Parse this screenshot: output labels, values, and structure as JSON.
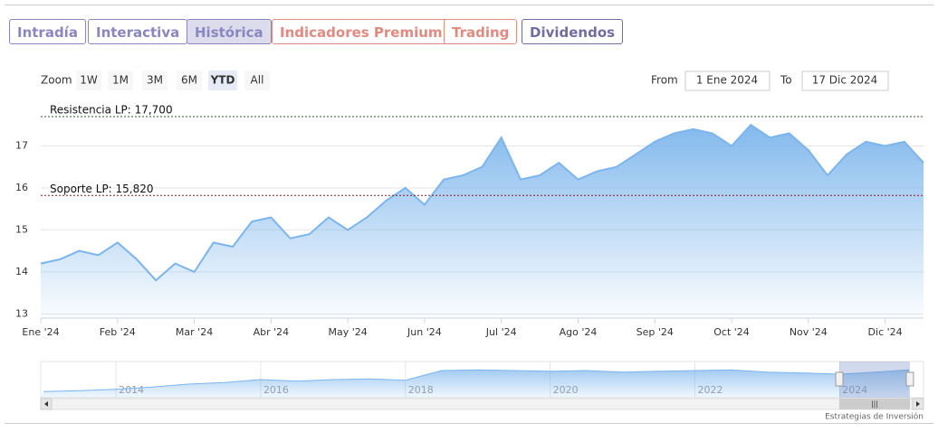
{
  "controls": {
    "tabs": [
      "Intradía",
      "Interactiva",
      "Histórica",
      "Indicadores Premium",
      "Trading",
      "Dividendos"
    ],
    "tab_colors": [
      "#8a86c0",
      "#8a86c0",
      "#8a86c0",
      "#e08a80",
      "#e08a80",
      "#6e6ea0"
    ],
    "active_tab": 2,
    "zoom_label": "Zoom",
    "zoom_buttons": [
      "1W",
      "1M",
      "3M",
      "6M",
      "YTD",
      "All"
    ],
    "active_zoom": 4,
    "from_label": "From",
    "from_value": "1 Ene 2024",
    "to_label": "To",
    "to_value": "17 Dic 2024",
    "credit": "Estrategias de Inversión"
  },
  "chart_data": [
    {
      "type": "area",
      "color": "#7cb5ec",
      "categories": [
        "Ene '24",
        null,
        null,
        null,
        "Feb '24",
        null,
        null,
        null,
        "Mar '24",
        null,
        null,
        null,
        "Abr '24",
        null,
        null,
        null,
        "May '24",
        null,
        null,
        null,
        "Jun '24",
        null,
        null,
        null,
        "Jul '24",
        null,
        null,
        null,
        "Ago '24",
        null,
        null,
        null,
        "Sep '24",
        null,
        null,
        null,
        "Oct '24",
        null,
        null,
        null,
        "Nov '24",
        null,
        null,
        null,
        "Dic '24",
        null,
        null
      ],
      "values": [
        14.2,
        14.3,
        14.5,
        14.4,
        14.7,
        14.3,
        13.8,
        14.2,
        14.0,
        14.7,
        14.6,
        15.2,
        15.3,
        14.8,
        14.9,
        15.3,
        15.0,
        15.3,
        15.7,
        16.0,
        15.6,
        16.2,
        16.3,
        16.5,
        17.2,
        16.2,
        16.3,
        16.6,
        16.2,
        16.4,
        16.5,
        16.8,
        17.1,
        17.3,
        17.4,
        17.3,
        17.0,
        17.5,
        17.2,
        17.3,
        16.9,
        16.3,
        16.8,
        17.1,
        17.0,
        17.1,
        16.6
      ],
      "ylim": [
        12.9,
        18
      ],
      "yticks": [
        13,
        14,
        15,
        16,
        17
      ],
      "grid": true,
      "annotations": [
        {
          "text": "Resistencia LP: 17,700",
          "value": 17.7,
          "color": "#2a5a2a"
        },
        {
          "text": "Soporte LP: 15,820",
          "value": 15.82,
          "color": "#8b1a1a"
        }
      ]
    },
    {
      "type": "area",
      "color": "#7cb5ec",
      "x": [
        2013,
        2013.5,
        2014,
        2014.5,
        2015,
        2015.5,
        2016,
        2016.5,
        2017,
        2017.5,
        2018,
        2018.5,
        2019,
        2019.5,
        2020,
        2020.5,
        2021,
        2021.5,
        2022,
        2022.5,
        2023,
        2023.5,
        2024,
        2024.5,
        2024.96
      ],
      "values": [
        10,
        10.3,
        10.8,
        11.5,
        12.5,
        13,
        14,
        13.5,
        14,
        14.2,
        13.8,
        17,
        17.2,
        17,
        16.8,
        17,
        16.5,
        16.8,
        17,
        17.2,
        16.5,
        16.2,
        15.8,
        16.5,
        17.2
      ],
      "xlim": [
        2012.96,
        2025.16
      ],
      "xticks": [
        2014,
        2016,
        2018,
        2020,
        2022,
        2024
      ],
      "ylim": [
        8,
        20
      ]
    }
  ]
}
